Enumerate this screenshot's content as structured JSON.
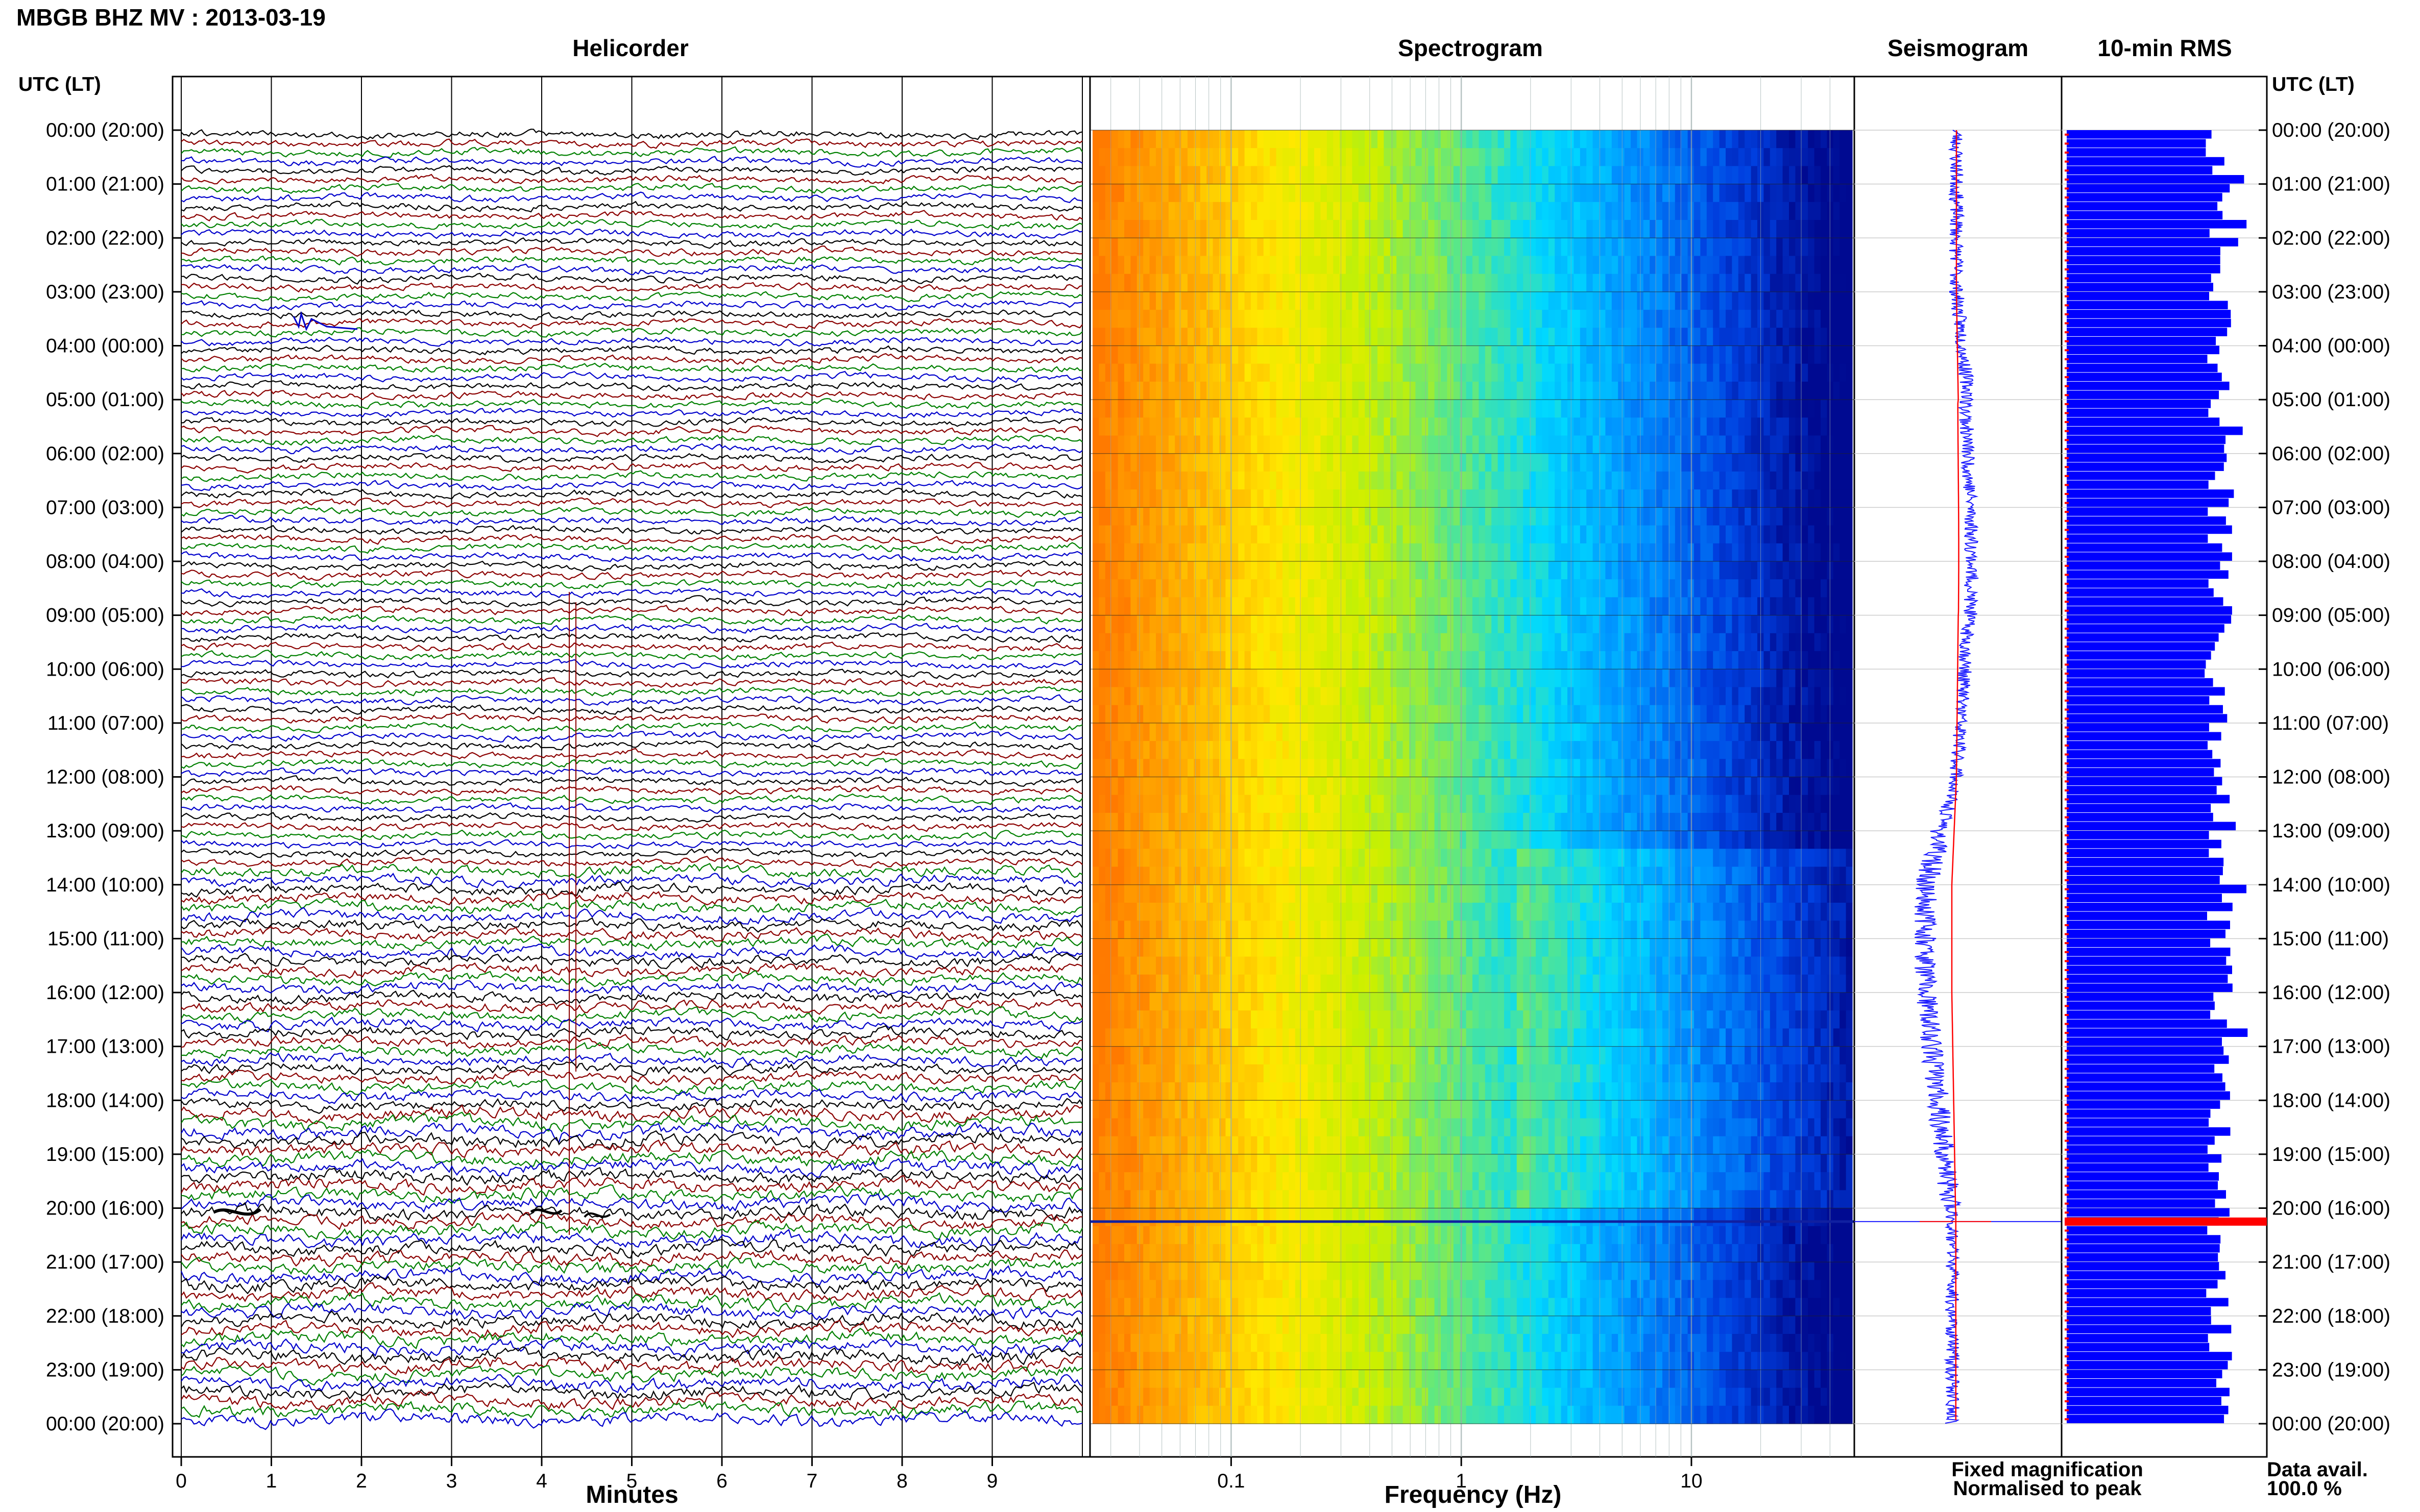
{
  "header": {
    "title": "MBGB BHZ MV : 2013-03-19"
  },
  "panels": {
    "helicorder": "Helicorder",
    "spectrogram": "Spectrogram",
    "seismogram": "Seismogram",
    "rms": "10-min RMS"
  },
  "time_axis": {
    "label_left": "UTC (LT)",
    "label_right": "UTC (LT)",
    "ticks": [
      "00:00 (20:00)",
      "01:00 (21:00)",
      "02:00 (22:00)",
      "03:00 (23:00)",
      "04:00 (00:00)",
      "05:00 (01:00)",
      "06:00 (02:00)",
      "07:00 (03:00)",
      "08:00 (04:00)",
      "09:00 (05:00)",
      "10:00 (06:00)",
      "11:00 (07:00)",
      "12:00 (08:00)",
      "13:00 (09:00)",
      "14:00 (10:00)",
      "15:00 (11:00)",
      "16:00 (12:00)",
      "17:00 (13:00)",
      "18:00 (14:00)",
      "19:00 (15:00)",
      "20:00 (16:00)",
      "21:00 (17:00)",
      "22:00 (18:00)",
      "23:00 (19:00)",
      "00:00 (20:00)"
    ]
  },
  "legend": {
    "fixed": "Fixed magnification",
    "normalised": "Normalised to peak",
    "fixed_color": "#1a1aff",
    "normalised_color": "#ff0000"
  },
  "data_avail": {
    "label": "Data avail.",
    "value": "100.0 %"
  },
  "colors": {
    "helicorder_traces": [
      "#000000",
      "#8b0000",
      "#008000",
      "#0000cc"
    ],
    "spectrogram_scale": [
      "#ff7a00",
      "#ffb000",
      "#ffe800",
      "#c8f000",
      "#60e880",
      "#00d8ff",
      "#0090ff",
      "#0040e0",
      "#000a90"
    ],
    "seismogram": "#1a1aff",
    "rms_bar": "#0000ff",
    "marker": "#ff0000"
  },
  "chart_data": [
    {
      "type": "line",
      "panel": "helicorder",
      "xlabel": "Minutes",
      "x_ticks": [
        "0",
        "1",
        "2",
        "3",
        "4",
        "5",
        "6",
        "7",
        "8",
        "9"
      ],
      "xlim": [
        0,
        10
      ],
      "rows": 144,
      "grid": true
    },
    {
      "type": "heatmap",
      "panel": "spectrogram",
      "xlabel": "Frequency (Hz)",
      "x_scale": "log",
      "x_ticks": [
        "0.1",
        "1",
        "10"
      ],
      "xlim": [
        0.025,
        50
      ],
      "grid": true
    },
    {
      "type": "line",
      "panel": "seismogram",
      "series": [
        {
          "name": "Fixed magnification"
        },
        {
          "name": "Normalised to peak"
        }
      ]
    },
    {
      "type": "bar",
      "panel": "10-min RMS",
      "orientation": "horizontal",
      "bins": 144,
      "spike_time": "20:15"
    }
  ]
}
